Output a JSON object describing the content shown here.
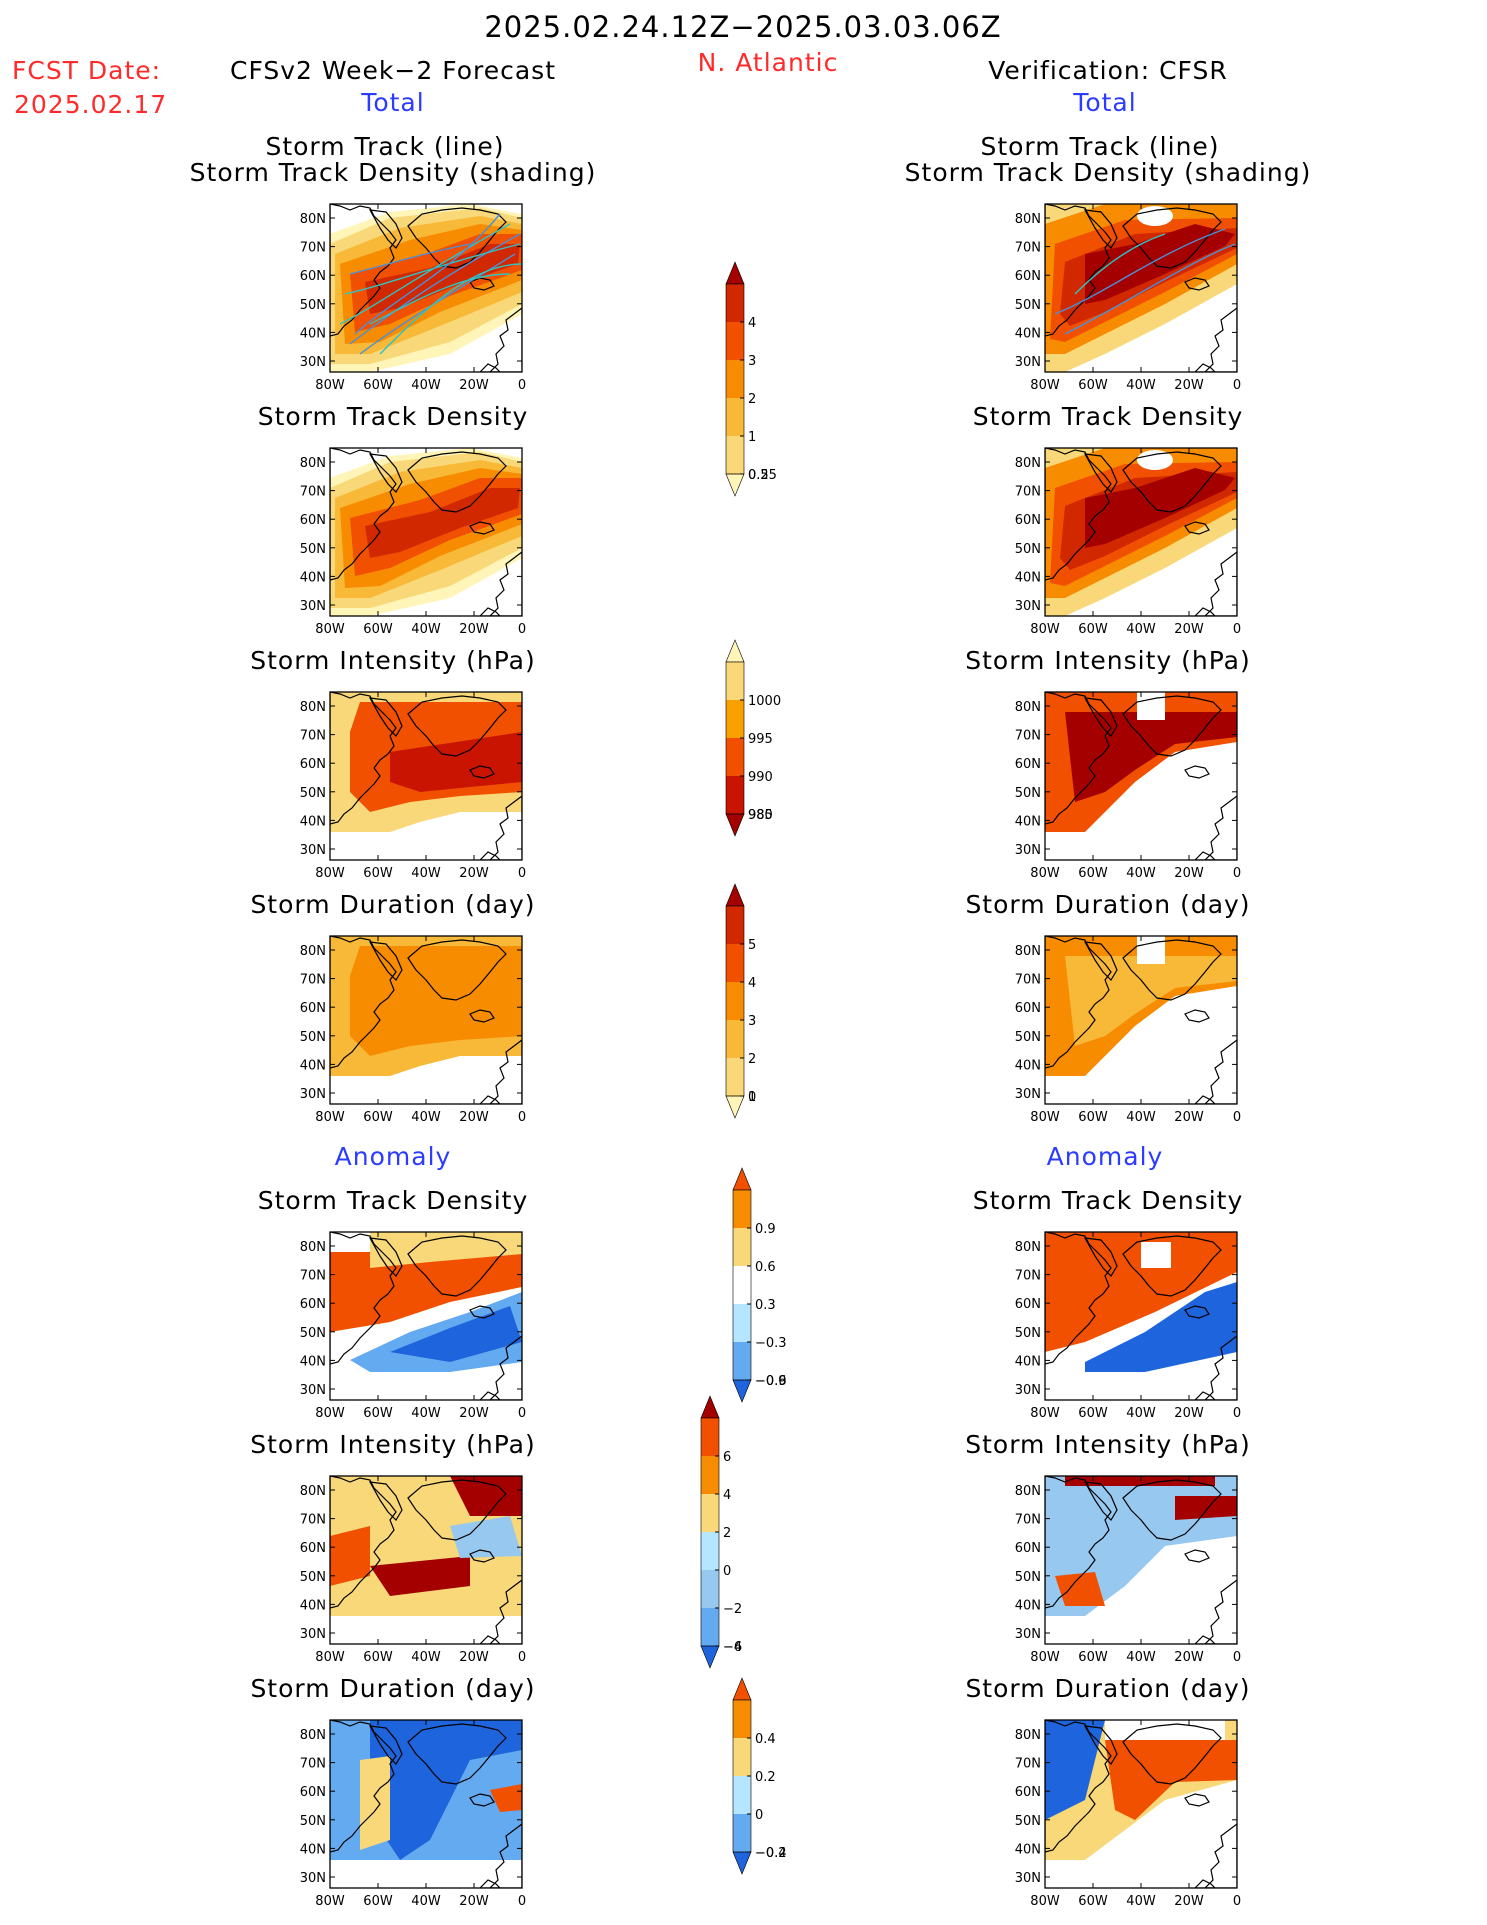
{
  "header": {
    "title": "2025.02.24.12Z−2025.03.03.06Z",
    "fcst_label": "FCST Date:",
    "fcst_date": "2025.02.17",
    "region": "N. Atlantic",
    "left_model": "CFSv2 Week−2 Forecast",
    "right_model": "Verification: CFSR",
    "total_label": "Total",
    "anomaly_label": "Anomaly"
  },
  "axes": {
    "lat_ticks": [
      "80N",
      "70N",
      "60N",
      "50N",
      "40N",
      "30N"
    ],
    "lon_ticks": [
      "80W",
      "60W",
      "40W",
      "20W",
      "0"
    ]
  },
  "panels": {
    "total": [
      {
        "title_line1": "Storm Track (line)",
        "title_line2": "Storm Track Density (shading)"
      },
      {
        "title_line1": "Storm Track Density",
        "title_line2": ""
      },
      {
        "title_line1": "Storm Intensity (hPa)",
        "title_line2": ""
      },
      {
        "title_line1": "Storm Duration (day)",
        "title_line2": ""
      }
    ],
    "anomaly": [
      {
        "title_line1": "Storm Track Density"
      },
      {
        "title_line1": "Storm Intensity (hPa)"
      },
      {
        "title_line1": "Storm Duration (day)"
      }
    ]
  },
  "colorbars": {
    "density": {
      "labels": [
        "4",
        "3",
        "2",
        "1",
        "0.5",
        "0.25"
      ],
      "colors": [
        "#a50000",
        "#d22800",
        "#f05000",
        "#f88c00",
        "#f8b838",
        "#f8d878",
        "#fff5b8"
      ]
    },
    "intensity": {
      "labels": [
        "1000",
        "995",
        "990",
        "985",
        "980"
      ],
      "colors": [
        "#fff5b8",
        "#f8d878",
        "#f8a000",
        "#f05000",
        "#c81400",
        "#a50000"
      ]
    },
    "duration": {
      "labels": [
        "5",
        "4",
        "3",
        "2",
        "1",
        "0"
      ],
      "colors": [
        "#a50000",
        "#d22800",
        "#f05000",
        "#f88c00",
        "#f8b838",
        "#f8d878",
        "#fff5b8"
      ]
    },
    "density_anom": {
      "labels": [
        "0.9",
        "0.6",
        "0.3",
        "−0.3",
        "−0.6",
        "−0.9"
      ],
      "colors": [
        "#f05000",
        "#f88c00",
        "#f8d878",
        "#ffffff",
        "#b4e6ff",
        "#64aaf0",
        "#1e64dc"
      ]
    },
    "intensity_anom": {
      "labels": [
        "6",
        "4",
        "2",
        "0",
        "−2",
        "−4",
        "−6"
      ],
      "colors": [
        "#a50000",
        "#f05000",
        "#f88c00",
        "#f8d878",
        "#b4e6ff",
        "#96c8f0",
        "#64aaf0",
        "#1e64dc"
      ]
    },
    "duration_anom": {
      "labels": [
        "0.4",
        "0.2",
        "0",
        "−0.2",
        "−0.4"
      ],
      "colors": [
        "#f05000",
        "#f88c00",
        "#f8d878",
        "#b4e6ff",
        "#64aaf0",
        "#1e64dc"
      ]
    }
  }
}
